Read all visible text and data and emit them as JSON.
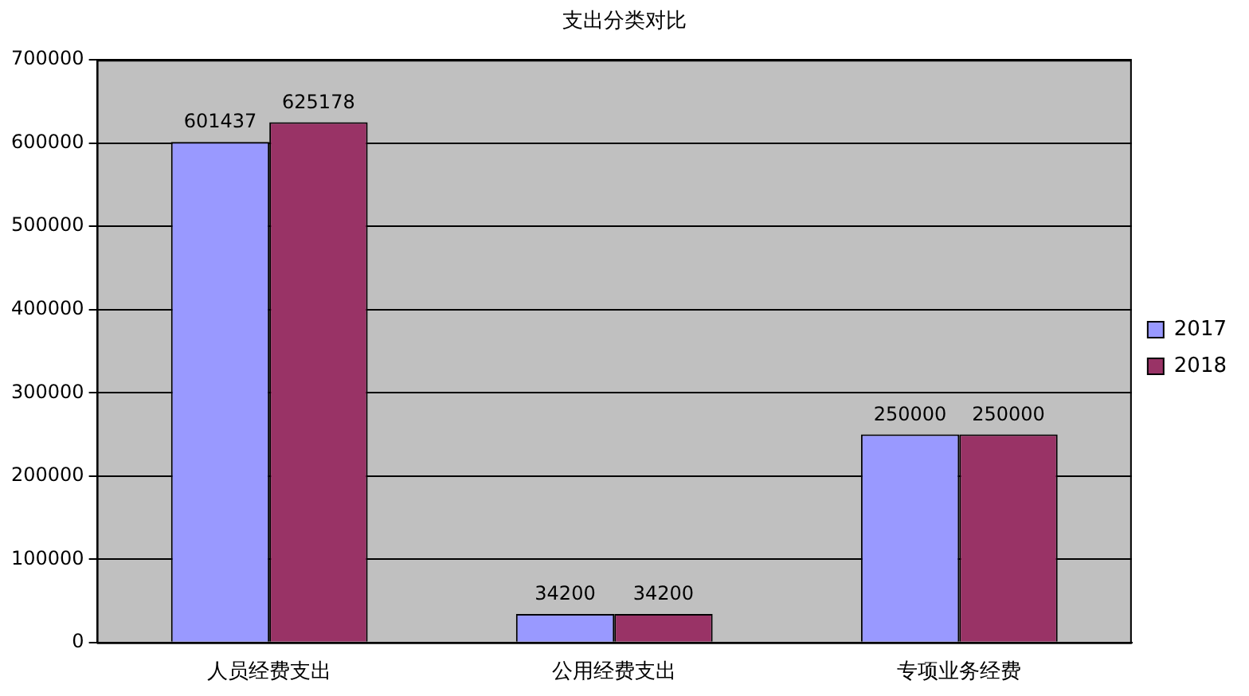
{
  "chart_data": {
    "type": "bar",
    "title": "支出分类对比",
    "categories": [
      "人员经费支出",
      "公用经费支出",
      "专项业务经费"
    ],
    "series": [
      {
        "name": "2017",
        "color": "#9999ff",
        "values": [
          601437,
          34200,
          250000
        ]
      },
      {
        "name": "2018",
        "color": "#993366",
        "values": [
          625178,
          34200,
          250000
        ]
      }
    ],
    "ylim": [
      0,
      700000
    ],
    "yticks": [
      0,
      100000,
      200000,
      300000,
      400000,
      500000,
      600000,
      700000
    ],
    "grid": "y",
    "legend": "right",
    "data_labels": true
  }
}
